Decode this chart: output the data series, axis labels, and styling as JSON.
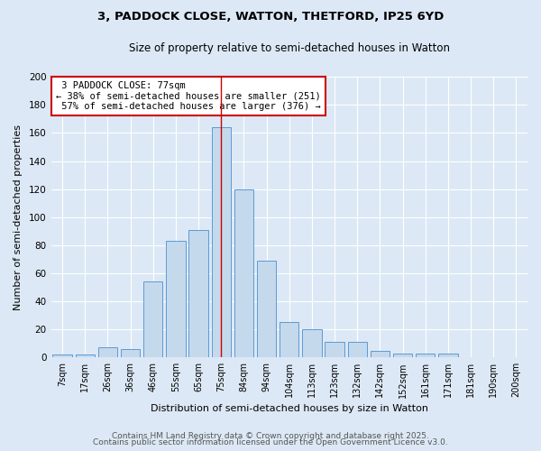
{
  "title1": "3, PADDOCK CLOSE, WATTON, THETFORD, IP25 6YD",
  "title2": "Size of property relative to semi-detached houses in Watton",
  "xlabel": "Distribution of semi-detached houses by size in Watton",
  "ylabel": "Number of semi-detached properties",
  "categories": [
    "7sqm",
    "17sqm",
    "26sqm",
    "36sqm",
    "46sqm",
    "55sqm",
    "65sqm",
    "75sqm",
    "84sqm",
    "94sqm",
    "104sqm",
    "113sqm",
    "123sqm",
    "132sqm",
    "142sqm",
    "152sqm",
    "161sqm",
    "171sqm",
    "181sqm",
    "190sqm",
    "200sqm"
  ],
  "values": [
    2,
    2,
    7,
    6,
    54,
    83,
    91,
    164,
    120,
    69,
    25,
    20,
    11,
    11,
    5,
    3,
    3,
    3,
    0,
    0,
    0
  ],
  "bar_color": "#c5d9ec",
  "bar_edge_color": "#5b9bd5",
  "pct_smaller": 38,
  "pct_smaller_n": 251,
  "pct_larger": 57,
  "pct_larger_n": 376,
  "property_label": "3 PADDOCK CLOSE: 77sqm",
  "vline_bin_index": 7,
  "vline_color": "#cc0000",
  "box_edge_color": "#cc0000",
  "bg_color": "#dce8f5",
  "grid_color": "#ffffff",
  "ylim": [
    0,
    200
  ],
  "yticks": [
    0,
    20,
    40,
    60,
    80,
    100,
    120,
    140,
    160,
    180,
    200
  ],
  "footer1": "Contains HM Land Registry data © Crown copyright and database right 2025.",
  "footer2": "Contains public sector information licensed under the Open Government Licence v3.0."
}
